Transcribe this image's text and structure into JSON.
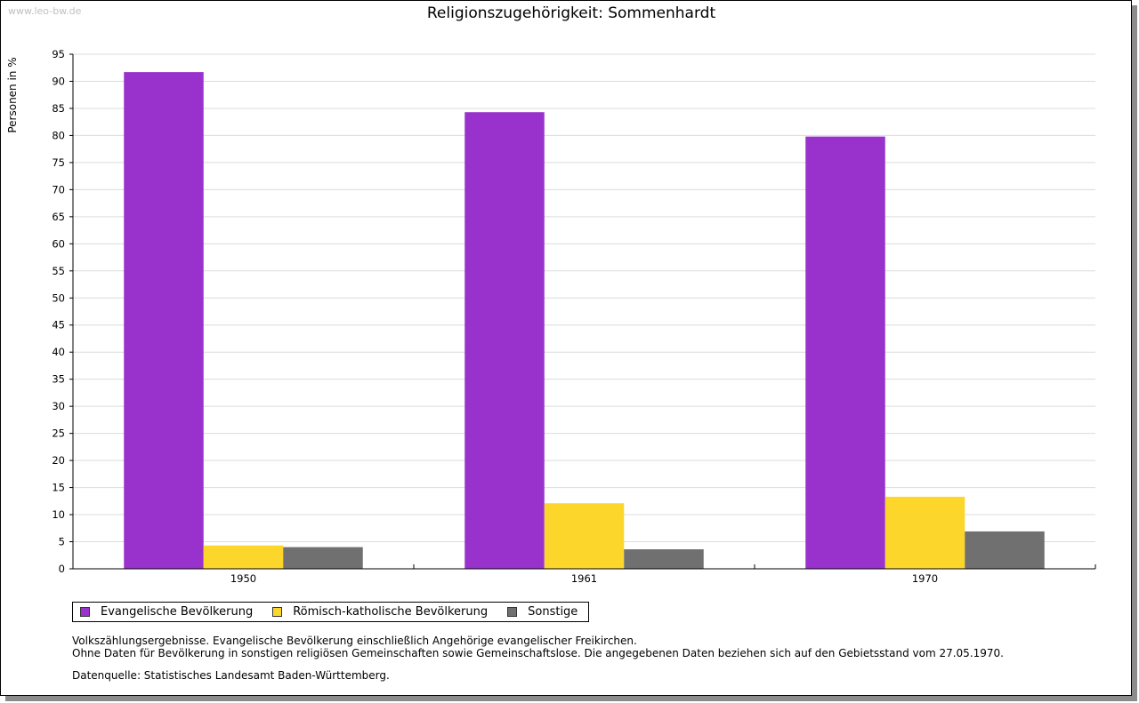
{
  "watermark": "www.leo-bw.de",
  "chart_data": {
    "type": "bar",
    "title": "Religionszugehörigkeit: Sommenhardt",
    "ylabel": "Personen in %",
    "xlabel": "",
    "categories": [
      "1950",
      "1961",
      "1970"
    ],
    "ylim": [
      0,
      95
    ],
    "yticks": [
      0,
      5,
      10,
      15,
      20,
      25,
      30,
      35,
      40,
      45,
      50,
      55,
      60,
      65,
      70,
      75,
      80,
      85,
      90,
      95
    ],
    "grid": true,
    "legend_position": "bottom-left",
    "series": [
      {
        "name": "Evangelische Bevölkerung",
        "color": "#9932cc",
        "values": [
          91.7,
          84.3,
          79.8
        ]
      },
      {
        "name": "Römisch-katholische Bevölkerung",
        "color": "#fcd62b",
        "values": [
          4.3,
          12.1,
          13.3
        ]
      },
      {
        "name": "Sonstige",
        "color": "#707070",
        "values": [
          4.0,
          3.6,
          6.9
        ]
      }
    ]
  },
  "notes": [
    "Volkszählungsergebnisse. Evangelische Bevölkerung einschließlich Angehörige evangelischer Freikirchen.",
    "Ohne Daten für Bevölkerung in sonstigen religiösen Gemeinschaften sowie Gemeinschaftslose. Die angegebenen Daten beziehen sich auf den Gebietsstand vom 27.05.1970."
  ],
  "source": "Datenquelle: Statistisches Landesamt Baden-Württemberg."
}
